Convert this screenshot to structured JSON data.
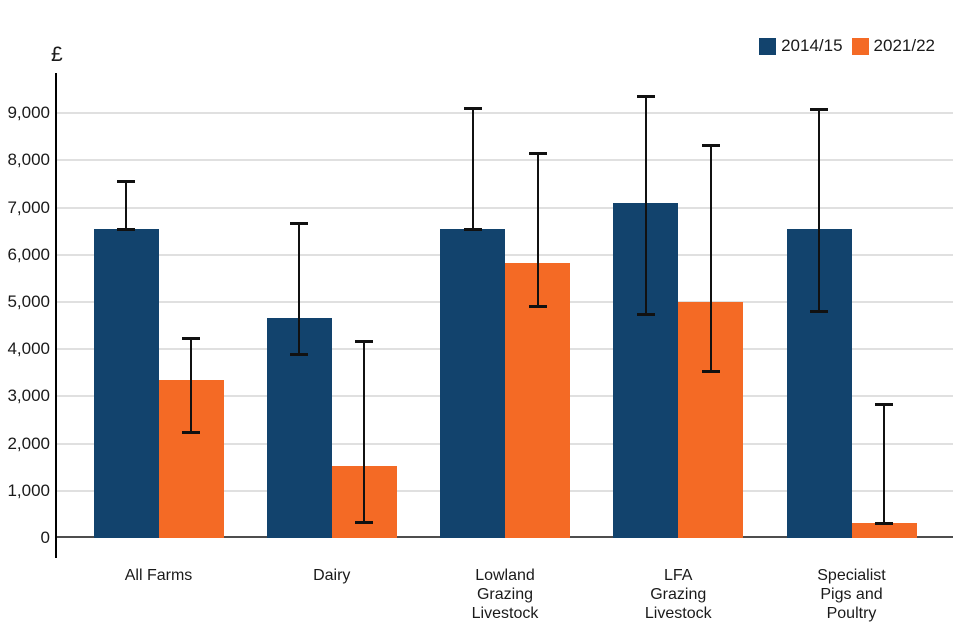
{
  "chart_data": {
    "type": "bar",
    "title": "",
    "ylabel": "£",
    "categories": [
      "All Farms",
      "Dairy",
      "Lowland\nGrazing\nLivestock",
      "LFA\nGrazing\nLivestock",
      "Specialist\nPigs and\nPoultry"
    ],
    "series": [
      {
        "name": "2014/15",
        "color": "#12436D",
        "values": [
          6550,
          4650,
          6550,
          7100,
          6550
        ],
        "error_low": [
          6550,
          3900,
          6550,
          4750,
          4800
        ],
        "error_high": [
          7570,
          6680,
          9110,
          9360,
          9080
        ]
      },
      {
        "name": "2021/22",
        "color": "#F46A25",
        "values": [
          3340,
          1530,
          5820,
          5000,
          320
        ],
        "error_low": [
          2250,
          330,
          4910,
          3530,
          320
        ],
        "error_high": [
          4230,
          4170,
          8160,
          8330,
          2840
        ]
      }
    ],
    "yticks": [
      0,
      1000,
      2000,
      3000,
      4000,
      5000,
      6000,
      7000,
      8000,
      9000
    ],
    "ytick_labels": [
      "0",
      "1,000",
      "2,000",
      "3,000",
      "4,000",
      "5,000",
      "6,000",
      "7,000",
      "8,000",
      "9,000"
    ],
    "ylim": [
      0,
      9850
    ],
    "grid": true,
    "legend_position": "top-right",
    "gridline_color": "#e0e0e0",
    "zero_line_color": "#4d4d4d",
    "error_bar_color": "#111111"
  }
}
